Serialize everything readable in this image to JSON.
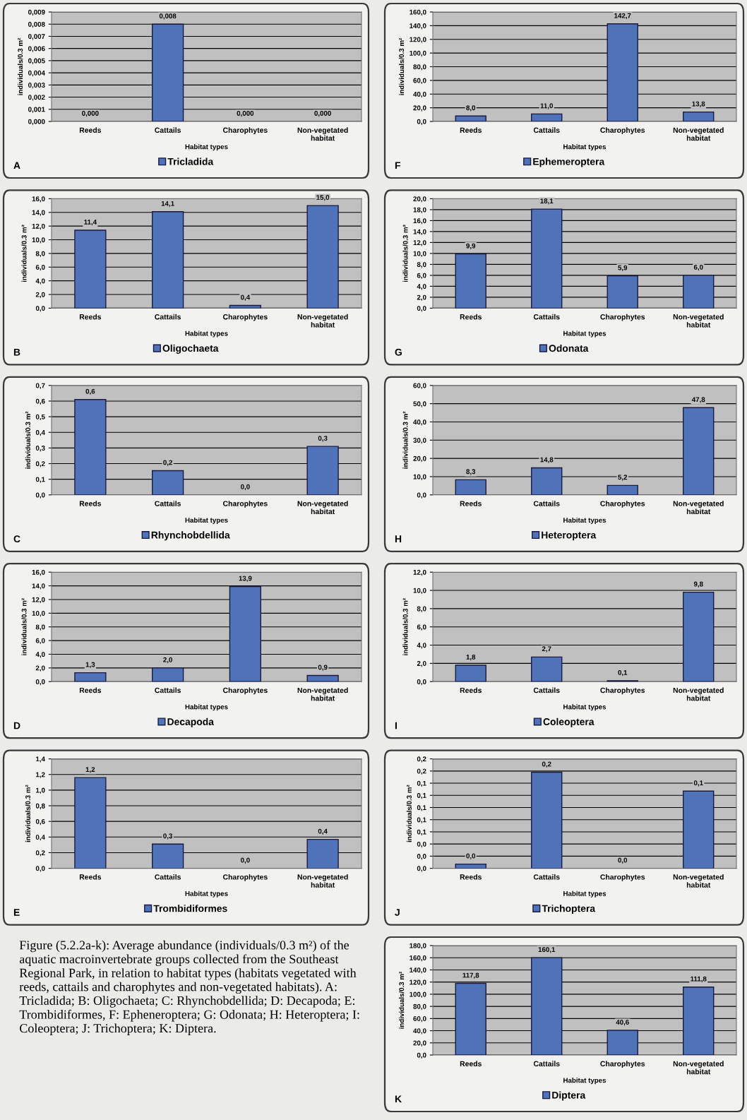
{
  "chart_data": [
    {
      "type": "bar",
      "xlabel": "Habitat types",
      "ylabel": "individuals/0.3 m²",
      "categories": [
        "Reeds",
        "Cattails",
        "Charophytes",
        "Non-vegetated habitat"
      ],
      "series": [
        {
          "name": "Tricladida",
          "color": "#4f72b8",
          "values": [
            0,
            0.008,
            0,
            0
          ],
          "value_labels": [
            "0,000",
            "0,008",
            "0,000",
            "0,000"
          ]
        }
      ],
      "ylim": [
        0,
        0.009
      ],
      "yticks": [
        {
          "value": 0,
          "label": "0,000"
        },
        {
          "value": 0.001,
          "label": "0,001"
        },
        {
          "value": 0.002,
          "label": "0,002"
        },
        {
          "value": 0.003,
          "label": "0,003"
        },
        {
          "value": 0.004,
          "label": "0,004"
        },
        {
          "value": 0.005,
          "label": "0,005"
        },
        {
          "value": 0.006,
          "label": "0,006"
        },
        {
          "value": 0.007,
          "label": "0,007"
        },
        {
          "value": 0.008,
          "label": "0,008"
        },
        {
          "value": 0.009,
          "label": "0,009"
        }
      ],
      "grid": "y",
      "legend": "bottom",
      "annotations": [
        "A"
      ]
    },
    {
      "type": "bar",
      "xlabel": "Habitat types",
      "ylabel": "individuals/0.3 m²",
      "categories": [
        "Reeds",
        "Cattails",
        "Charophytes",
        "Non-vegetated habitat"
      ],
      "series": [
        {
          "name": "Oligochaeta",
          "color": "#4f72b8",
          "values": [
            11.4,
            14.1,
            0.4,
            15.0
          ],
          "value_labels": [
            "11,4",
            "14,1",
            "0,4",
            "15,0"
          ]
        }
      ],
      "ylim": [
        0,
        16
      ],
      "yticks": [
        {
          "value": 0,
          "label": "0,0"
        },
        {
          "value": 2,
          "label": "2,0"
        },
        {
          "value": 4,
          "label": "4,0"
        },
        {
          "value": 6,
          "label": "6,0"
        },
        {
          "value": 8,
          "label": "8,0"
        },
        {
          "value": 10,
          "label": "10,0"
        },
        {
          "value": 12,
          "label": "12,0"
        },
        {
          "value": 14,
          "label": "14,0"
        },
        {
          "value": 16,
          "label": "16,0"
        }
      ],
      "grid": "y",
      "legend": "bottom",
      "annotations": [
        "B"
      ]
    },
    {
      "type": "bar",
      "xlabel": "Habitat types",
      "ylabel": "individuals/0.3 m²",
      "categories": [
        "Reeds",
        "Cattails",
        "Charophytes",
        "Non-vegetated habitat"
      ],
      "series": [
        {
          "name": "Rhynchobdellida",
          "color": "#4f72b8",
          "values": [
            0.61,
            0.155,
            0,
            0.31
          ],
          "value_labels": [
            "0,6",
            "0,2",
            "0,0",
            "0,3"
          ]
        }
      ],
      "ylim": [
        0,
        0.7
      ],
      "yticks": [
        {
          "value": 0,
          "label": "0,0"
        },
        {
          "value": 0.1,
          "label": "0,1"
        },
        {
          "value": 0.2,
          "label": "0,2"
        },
        {
          "value": 0.3,
          "label": "0,3"
        },
        {
          "value": 0.4,
          "label": "0,4"
        },
        {
          "value": 0.5,
          "label": "0,5"
        },
        {
          "value": 0.6,
          "label": "0,6"
        },
        {
          "value": 0.7,
          "label": "0,7"
        }
      ],
      "grid": "y",
      "legend": "bottom",
      "annotations": [
        "C"
      ]
    },
    {
      "type": "bar",
      "xlabel": "Habitat types",
      "ylabel": "individuals/0.3 m²",
      "categories": [
        "Reeds",
        "Cattails",
        "Charophytes",
        "Non-vegetated habitat"
      ],
      "series": [
        {
          "name": "Decapoda",
          "color": "#4f72b8",
          "values": [
            1.3,
            2.0,
            13.9,
            0.9
          ],
          "value_labels": [
            "1,3",
            "2,0",
            "13,9",
            "0,9"
          ]
        }
      ],
      "ylim": [
        0,
        16
      ],
      "yticks": [
        {
          "value": 0,
          "label": "0,0"
        },
        {
          "value": 2,
          "label": "2,0"
        },
        {
          "value": 4,
          "label": "4,0"
        },
        {
          "value": 6,
          "label": "6,0"
        },
        {
          "value": 8,
          "label": "8,0"
        },
        {
          "value": 10,
          "label": "10,0"
        },
        {
          "value": 12,
          "label": "12,0"
        },
        {
          "value": 14,
          "label": "14,0"
        },
        {
          "value": 16,
          "label": "16,0"
        }
      ],
      "grid": "y",
      "legend": "bottom",
      "annotations": [
        "D"
      ]
    },
    {
      "type": "bar",
      "xlabel": "Habitat types",
      "ylabel": "individuals/0.3 m²",
      "categories": [
        "Reeds",
        "Cattails",
        "Charophytes",
        "Non-vegetated habitat"
      ],
      "series": [
        {
          "name": "Trombidiformes",
          "color": "#4f72b8",
          "values": [
            1.16,
            0.31,
            0,
            0.37
          ],
          "value_labels": [
            "1,2",
            "0,3",
            "0,0",
            "0,4"
          ]
        }
      ],
      "ylim": [
        0,
        1.4
      ],
      "yticks": [
        {
          "value": 0,
          "label": "0,0"
        },
        {
          "value": 0.2,
          "label": "0,2"
        },
        {
          "value": 0.4,
          "label": "0,4"
        },
        {
          "value": 0.6,
          "label": "0,6"
        },
        {
          "value": 0.8,
          "label": "0,8"
        },
        {
          "value": 1.0,
          "label": "1,0"
        },
        {
          "value": 1.2,
          "label": "1,2"
        },
        {
          "value": 1.4,
          "label": "1,4"
        }
      ],
      "grid": "y",
      "legend": "bottom",
      "annotations": [
        "E",
        "Figure (5.2.2a-k): Average abundance (individuals/0.3 m²) of the aquatic macroinvertebrate groups collected from the Southeast Regional Park, in relation to habitat types (habitats vegetated with reeds, cattails and charophytes and non-vegetated habitats). A: Tricladida; B: Oligochaeta; C: Rhynchobdellida; D: Decapoda; E: Trombidiformes, F: Epheneroptera; G: Odonata; H: Heteroptera; I: Coleoptera; J: Trichoptera; K: Diptera."
      ]
    },
    {
      "type": "bar",
      "xlabel": "Habitat types",
      "ylabel": "individuals/0.3 m²",
      "categories": [
        "Reeds",
        "Cattails",
        "Charophytes",
        "Non-vegetated habitat"
      ],
      "series": [
        {
          "name": "Ephemeroptera",
          "color": "#4f72b8",
          "values": [
            8.0,
            11.0,
            142.7,
            13.8
          ],
          "value_labels": [
            "8,0",
            "11,0",
            "142,7",
            "13,8"
          ]
        }
      ],
      "ylim": [
        0,
        160
      ],
      "yticks": [
        {
          "value": 0,
          "label": "0,0"
        },
        {
          "value": 20,
          "label": "20,0"
        },
        {
          "value": 40,
          "label": "40,0"
        },
        {
          "value": 60,
          "label": "60,0"
        },
        {
          "value": 80,
          "label": "80,0"
        },
        {
          "value": 100,
          "label": "100,0"
        },
        {
          "value": 120,
          "label": "120,0"
        },
        {
          "value": 140,
          "label": "140,0"
        },
        {
          "value": 160,
          "label": "160,0"
        }
      ],
      "grid": "y",
      "legend": "bottom",
      "annotations": [
        "F"
      ]
    },
    {
      "type": "bar",
      "xlabel": "Habitat types",
      "ylabel": "individuals/0.3 m²",
      "categories": [
        "Reeds",
        "Cattails",
        "Charophytes",
        "Non-vegetated habitat"
      ],
      "series": [
        {
          "name": "Odonata",
          "color": "#4f72b8",
          "values": [
            9.9,
            18.1,
            5.9,
            6.0
          ],
          "value_labels": [
            "9,9",
            "18,1",
            "5,9",
            "6,0"
          ]
        }
      ],
      "ylim": [
        0,
        20
      ],
      "yticks": [
        {
          "value": 0,
          "label": "0,0"
        },
        {
          "value": 2,
          "label": "2,0"
        },
        {
          "value": 4,
          "label": "4,0"
        },
        {
          "value": 6,
          "label": "6,0"
        },
        {
          "value": 8,
          "label": "8,0"
        },
        {
          "value": 10,
          "label": "10,0"
        },
        {
          "value": 12,
          "label": "12,0"
        },
        {
          "value": 14,
          "label": "14,0"
        },
        {
          "value": 16,
          "label": "16,0"
        },
        {
          "value": 18,
          "label": "18,0"
        },
        {
          "value": 20,
          "label": "20,0"
        }
      ],
      "grid": "y",
      "legend": "bottom",
      "annotations": [
        "G"
      ]
    },
    {
      "type": "bar",
      "xlabel": "Habitat types",
      "ylabel": "individuals/0.3 m²",
      "categories": [
        "Reeds",
        "Cattails",
        "Charophytes",
        "Non-vegetated habitat"
      ],
      "series": [
        {
          "name": "Heteroptera",
          "color": "#4f72b8",
          "values": [
            8.3,
            14.8,
            5.2,
            47.8
          ],
          "value_labels": [
            "8,3",
            "14,8",
            "5,2",
            "47,8"
          ]
        }
      ],
      "ylim": [
        0,
        60
      ],
      "yticks": [
        {
          "value": 0,
          "label": "0,0"
        },
        {
          "value": 10,
          "label": "10,0"
        },
        {
          "value": 20,
          "label": "20,0"
        },
        {
          "value": 30,
          "label": "30,0"
        },
        {
          "value": 40,
          "label": "40,0"
        },
        {
          "value": 50,
          "label": "50,0"
        },
        {
          "value": 60,
          "label": "60,0"
        }
      ],
      "grid": "y",
      "legend": "bottom",
      "annotations": [
        "H"
      ]
    },
    {
      "type": "bar",
      "xlabel": "Habitat types",
      "ylabel": "individuals/0.3 m²",
      "categories": [
        "Reeds",
        "Cattails",
        "Charophytes",
        "Non-vegetated habitat"
      ],
      "series": [
        {
          "name": "Coleoptera",
          "color": "#4f72b8",
          "values": [
            1.8,
            2.7,
            0.1,
            9.8
          ],
          "value_labels": [
            "1,8",
            "2,7",
            "0,1",
            "9,8"
          ]
        }
      ],
      "ylim": [
        0,
        12
      ],
      "yticks": [
        {
          "value": 0,
          "label": "0,0"
        },
        {
          "value": 2,
          "label": "2,0"
        },
        {
          "value": 4,
          "label": "4,0"
        },
        {
          "value": 6,
          "label": "6,0"
        },
        {
          "value": 8,
          "label": "8,0"
        },
        {
          "value": 10,
          "label": "10,0"
        },
        {
          "value": 12,
          "label": "12,0"
        }
      ],
      "grid": "y",
      "legend": "bottom",
      "annotations": [
        "I"
      ]
    },
    {
      "type": "bar",
      "xlabel": "Habitat types",
      "ylabel": "individuals/0.3 m²",
      "categories": [
        "Reeds",
        "Cattails",
        "Charophytes",
        "Non-vegetated habitat"
      ],
      "series": [
        {
          "name": "Trichoptera",
          "color": "#4f72b8",
          "values": [
            0.007,
            0.158,
            0,
            0.127
          ],
          "value_labels": [
            "0,0",
            "0,2",
            "0,0",
            "0,1"
          ]
        }
      ],
      "ylim": [
        0,
        0.18
      ],
      "yticks": [
        {
          "value": 0,
          "label": "0,0"
        },
        {
          "value": 0.02,
          "label": "0,0"
        },
        {
          "value": 0.04,
          "label": "0,0"
        },
        {
          "value": 0.06,
          "label": "0,1"
        },
        {
          "value": 0.08,
          "label": "0,1"
        },
        {
          "value": 0.1,
          "label": "0,1"
        },
        {
          "value": 0.12,
          "label": "0,1"
        },
        {
          "value": 0.14,
          "label": "0,1"
        },
        {
          "value": 0.16,
          "label": "0,2"
        },
        {
          "value": 0.18,
          "label": "0,2"
        }
      ],
      "grid": "y",
      "legend": "bottom",
      "annotations": [
        "J"
      ]
    },
    {
      "type": "bar",
      "xlabel": "Habitat types",
      "ylabel": "individuals/0.3 m²",
      "categories": [
        "Reeds",
        "Cattails",
        "Charophytes",
        "Non-vegetated habitat"
      ],
      "series": [
        {
          "name": "Diptera",
          "color": "#4f72b8",
          "values": [
            117.8,
            160.1,
            40.6,
            111.8
          ],
          "value_labels": [
            "117,8",
            "160,1",
            "40,6",
            "111,8"
          ]
        }
      ],
      "ylim": [
        0,
        180
      ],
      "yticks": [
        {
          "value": 0,
          "label": "0,0"
        },
        {
          "value": 20,
          "label": "20,0"
        },
        {
          "value": 40,
          "label": "40,0"
        },
        {
          "value": 60,
          "label": "60,0"
        },
        {
          "value": 80,
          "label": "80,0"
        },
        {
          "value": 100,
          "label": "100,0"
        },
        {
          "value": 120,
          "label": "120,0"
        },
        {
          "value": 140,
          "label": "140,0"
        },
        {
          "value": 160,
          "label": "160,0"
        },
        {
          "value": 180,
          "label": "180,0"
        }
      ],
      "grid": "y",
      "legend": "bottom",
      "annotations": [
        "K"
      ]
    }
  ]
}
